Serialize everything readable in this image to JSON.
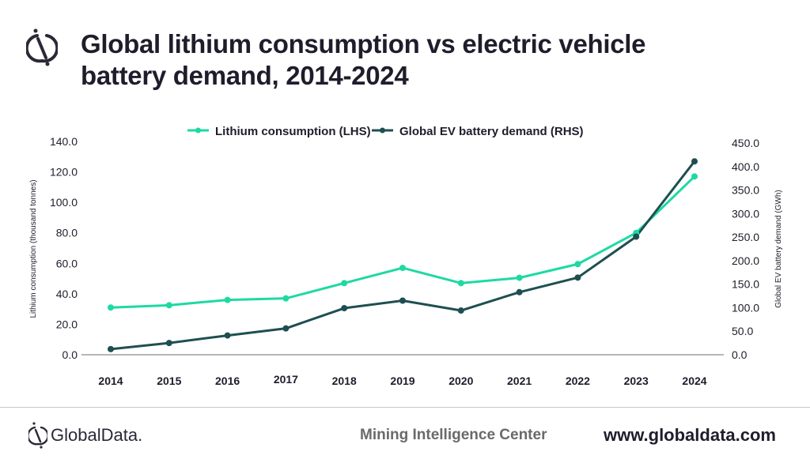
{
  "header": {
    "title_line1": "Global lithium consumption vs electric vehicle",
    "title_line2": "battery demand, 2014-2024",
    "logo_icon": "globaldata-logo-icon"
  },
  "footer": {
    "brand": "GlobalData.",
    "center_text": "Mining Intelligence Center",
    "url": "www.globaldata.com"
  },
  "colors": {
    "lithium": "#1ed9a3",
    "ev": "#1e4f50",
    "axis": "#8a8a8a",
    "text": "#1f1d2b"
  },
  "chart_data": {
    "type": "line",
    "title": "Global lithium consumption vs electric vehicle battery demand, 2014-2024",
    "categories": [
      "2014",
      "2015",
      "2016",
      "2017",
      "2018",
      "2019",
      "2020",
      "2021",
      "2022",
      "2023",
      "2024"
    ],
    "series": [
      {
        "name": "Lithium consumption (LHS)",
        "axis": "left",
        "values": [
          31.0,
          32.5,
          36.0,
          37.0,
          47.0,
          57.0,
          47.0,
          50.5,
          59.5,
          80.0,
          117.0
        ]
      },
      {
        "name": "Global EV battery demand (RHS)",
        "axis": "right",
        "values": [
          12.0,
          25.0,
          41.0,
          56.0,
          99.0,
          115.0,
          94.0,
          133.0,
          164.0,
          251.0,
          411.0
        ]
      }
    ],
    "y_left": {
      "label": "Lithium consumption (thousand tonnes)",
      "range": [
        0,
        140
      ],
      "ticks": [
        "0.0",
        "20.0",
        "40.0",
        "60.0",
        "80.0",
        "100.0",
        "120.0",
        "140.0"
      ],
      "tick_values": [
        0,
        20,
        40,
        60,
        80,
        100,
        120,
        140
      ]
    },
    "y_right": {
      "label": "Global EV battery demand (GWh)",
      "range": [
        0,
        450
      ],
      "ticks": [
        "0.0",
        "50.0",
        "100.0",
        "150.0",
        "200.0",
        "250.0",
        "300.0",
        "350.0",
        "400.0",
        "450.0"
      ],
      "tick_values": [
        0,
        50,
        100,
        150,
        200,
        250,
        300,
        350,
        400,
        450
      ]
    },
    "xlabel": "",
    "grid": false,
    "legend_position": "top-center"
  }
}
